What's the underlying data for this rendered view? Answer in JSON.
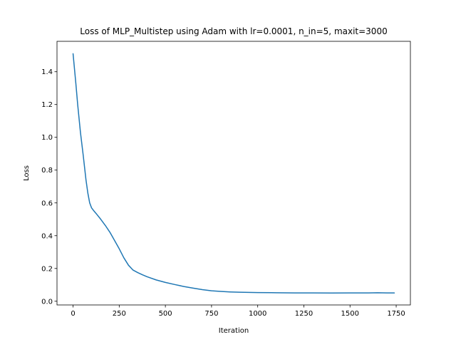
{
  "chart_data": {
    "type": "line",
    "title": "Loss of MLP_Multistep using Adam with lr=0.0001, n_in=5, maxit=3000",
    "xlabel": "Iteration",
    "ylabel": "Loss",
    "xlim": [
      -87,
      1827
    ],
    "ylim": [
      -0.0226,
      1.5856
    ],
    "xticks": [
      0,
      250,
      500,
      750,
      1000,
      1250,
      1500,
      1750
    ],
    "yticks": [
      0.0,
      0.2,
      0.4,
      0.6,
      0.8,
      1.0,
      1.2,
      1.4
    ],
    "xtick_labels": [
      "0",
      "250",
      "500",
      "750",
      "1000",
      "1250",
      "1500",
      "1750"
    ],
    "ytick_labels": [
      "0.0",
      "0.2",
      "0.4",
      "0.6",
      "0.8",
      "1.0",
      "1.2",
      "1.4"
    ],
    "grid": false,
    "legend": "none",
    "series": [
      {
        "color": "#1f77b4",
        "x": [
          0,
          15,
          25,
          40,
          55,
          70,
          80,
          90,
          100,
          110,
          125,
          150,
          175,
          200,
          225,
          250,
          275,
          300,
          325,
          350,
          375,
          400,
          450,
          500,
          550,
          600,
          650,
          700,
          750,
          800,
          850,
          900,
          950,
          1000,
          1100,
          1200,
          1300,
          1400,
          1500,
          1600,
          1650,
          1700,
          1740
        ],
        "y": [
          1.51,
          1.33,
          1.2,
          1.03,
          0.89,
          0.74,
          0.66,
          0.6,
          0.57,
          0.555,
          0.535,
          0.5,
          0.462,
          0.42,
          0.37,
          0.32,
          0.265,
          0.22,
          0.19,
          0.175,
          0.162,
          0.15,
          0.13,
          0.115,
          0.102,
          0.09,
          0.08,
          0.071,
          0.064,
          0.06,
          0.057,
          0.055,
          0.054,
          0.053,
          0.052,
          0.051,
          0.051,
          0.05,
          0.051,
          0.051,
          0.052,
          0.051,
          0.051
        ]
      }
    ]
  }
}
